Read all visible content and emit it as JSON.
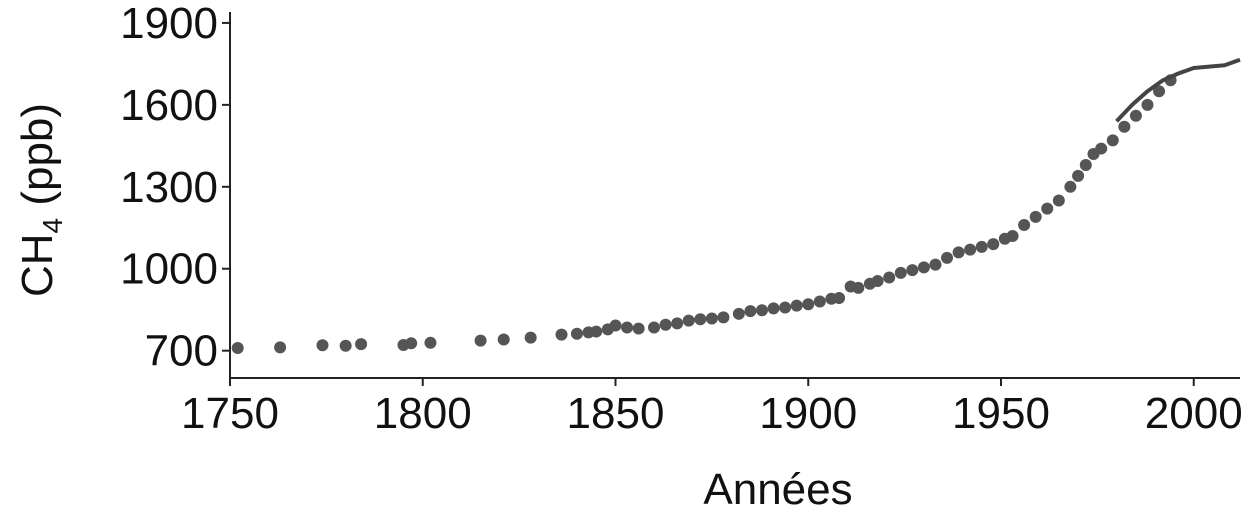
{
  "chart_data": {
    "type": "scatter",
    "title": "",
    "xlabel": "Années",
    "ylabel": {
      "main": "CH",
      "subscript": "4",
      "unit": " (ppb)"
    },
    "xlim": [
      1750,
      2012
    ],
    "ylim": [
      600,
      1940
    ],
    "xticks": [
      1750,
      1800,
      1850,
      1900,
      1950,
      2000
    ],
    "xtick_labels": [
      "1750",
      "1800",
      "1850",
      "1900",
      "1950",
      "2000"
    ],
    "yticks": [
      700,
      1000,
      1300,
      1600,
      1900
    ],
    "ytick_labels": [
      "700",
      "1000",
      "1300",
      "1600",
      "1900"
    ],
    "grid": false,
    "colors": {
      "points": "#555555",
      "curve": "#444444",
      "axis": "#222222"
    },
    "series": [
      {
        "kind": "points",
        "x": [
          1752,
          1763,
          1774,
          1780,
          1784,
          1795,
          1797,
          1802,
          1815,
          1821,
          1828,
          1836,
          1840,
          1843,
          1845,
          1848,
          1850,
          1853,
          1856,
          1860,
          1863,
          1866,
          1869,
          1872,
          1875,
          1878,
          1882,
          1885,
          1888,
          1891,
          1894,
          1897,
          1900,
          1903,
          1906,
          1908,
          1911,
          1913,
          1916,
          1918,
          1921,
          1924,
          1927,
          1930,
          1933,
          1936,
          1939,
          1942,
          1945,
          1948,
          1951,
          1953,
          1956,
          1959,
          1962,
          1965,
          1968,
          1970,
          1972,
          1974,
          1976,
          1979,
          1982,
          1985,
          1988,
          1991,
          1994
        ],
        "y": [
          710,
          712,
          720,
          718,
          724,
          721,
          727,
          729,
          737,
          741,
          748,
          759,
          762,
          767,
          770,
          778,
          792,
          785,
          781,
          785,
          795,
          800,
          810,
          815,
          818,
          822,
          835,
          845,
          848,
          855,
          858,
          865,
          870,
          880,
          890,
          893,
          935,
          930,
          945,
          955,
          968,
          985,
          995,
          1005,
          1015,
          1040,
          1060,
          1070,
          1080,
          1090,
          1110,
          1120,
          1160,
          1190,
          1220,
          1250,
          1300,
          1340,
          1380,
          1420,
          1440,
          1470,
          1520,
          1560,
          1600,
          1650,
          1690
        ]
      },
      {
        "kind": "line",
        "x": [
          1980,
          1984,
          1988,
          1992,
          1996,
          2000,
          2004,
          2008,
          2012
        ],
        "y": [
          1540,
          1600,
          1650,
          1690,
          1715,
          1735,
          1740,
          1745,
          1765
        ]
      }
    ]
  }
}
